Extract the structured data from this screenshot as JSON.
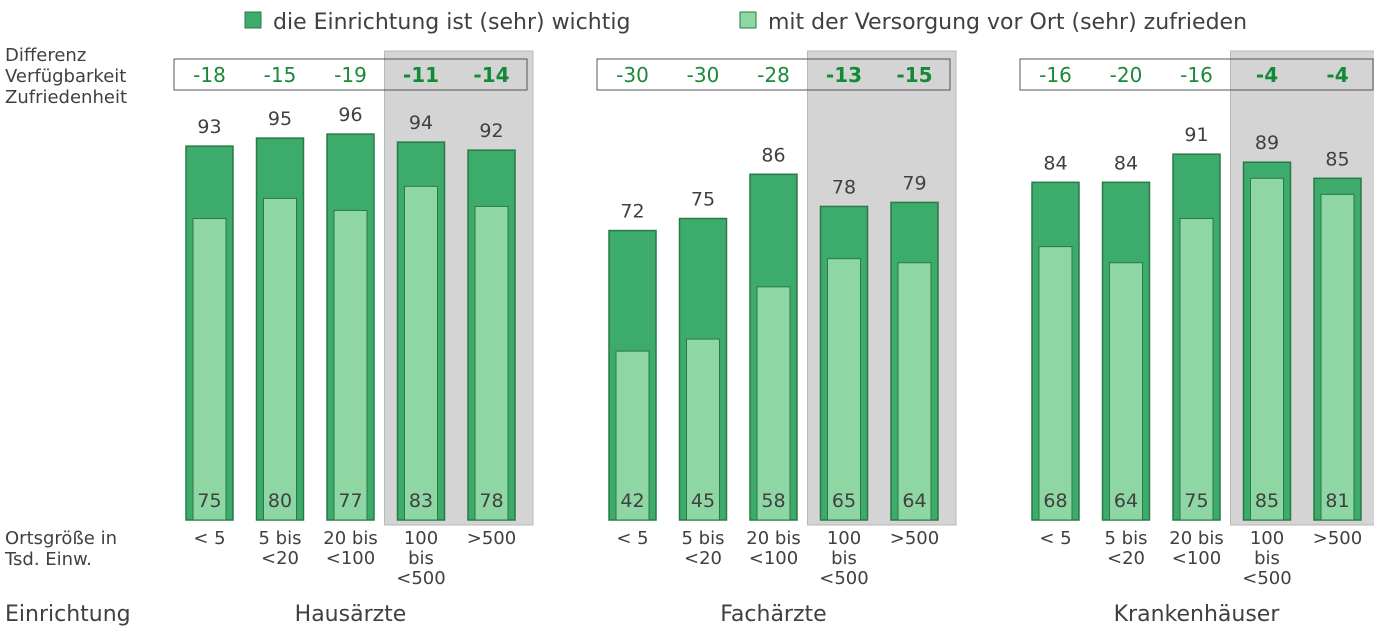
{
  "legend": [
    {
      "label": "die Einrichtung ist (sehr) wichtig",
      "color": "#3dab6b"
    },
    {
      "label": "mit der Versorgung vor Ort (sehr) zufrieden",
      "color": "#8ed6a3"
    }
  ],
  "row_labels": {
    "diff_line1": "Differenz",
    "diff_line2": "Verfügbarkeit",
    "diff_line3": "Zufriedenheit",
    "size_line1": "Ortsgröße in",
    "size_line2": "Tsd. Einw.",
    "facility": "Einrichtung"
  },
  "colors": {
    "important": "#3dab6b",
    "satisfied": "#8ed6a3",
    "bar_border": "#2a7a45",
    "highlight_bg": "#d4d4d4",
    "diff_text": "#1a8a3a"
  },
  "chart_data": {
    "type": "bar",
    "categories": [
      [
        "< 5"
      ],
      [
        "5 bis",
        "<20"
      ],
      [
        "20 bis",
        "<100"
      ],
      [
        "100",
        "bis",
        "<500"
      ],
      [
        ">500"
      ]
    ],
    "highlighted_categories": [
      3,
      4
    ],
    "groups": [
      {
        "name": "Hausärzte",
        "important": [
          93,
          95,
          96,
          94,
          92
        ],
        "satisfied": [
          75,
          80,
          77,
          83,
          78
        ],
        "difference": [
          "-18",
          "-15",
          "-19",
          "-11",
          "-14"
        ]
      },
      {
        "name": "Fachärzte",
        "important": [
          72,
          75,
          86,
          78,
          79
        ],
        "satisfied": [
          42,
          45,
          58,
          65,
          64
        ],
        "difference": [
          "-30",
          "-30",
          "-28",
          "-13",
          "-15"
        ]
      },
      {
        "name": "Krankenhäuser",
        "important": [
          84,
          84,
          91,
          89,
          85
        ],
        "satisfied": [
          68,
          64,
          75,
          85,
          81
        ],
        "difference": [
          "-16",
          "-20",
          "-16",
          "-4",
          "-4"
        ]
      }
    ],
    "series": [
      {
        "name": "die Einrichtung ist (sehr) wichtig"
      },
      {
        "name": "mit der Versorgung vor Ort (sehr) zufrieden"
      }
    ],
    "ylim": [
      0,
      100
    ],
    "grid": false,
    "legend_position": "top"
  }
}
